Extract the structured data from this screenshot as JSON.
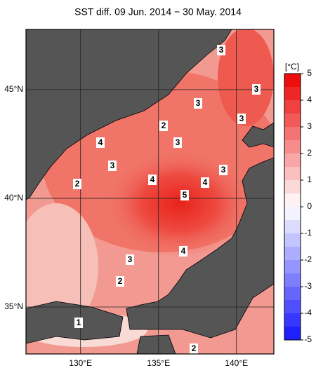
{
  "title": "SST diff. 09 Jun. 2014 − 30 May. 2014",
  "map": {
    "lonlim": [
      126.5,
      142.4
    ],
    "latlim": [
      32.84,
      47.77
    ],
    "lon_ticks": [
      {
        "value": 130,
        "label": "130°E"
      },
      {
        "value": 135,
        "label": "135°E"
      },
      {
        "value": 140,
        "label": "140°E"
      }
    ],
    "lat_ticks": [
      {
        "value": 45,
        "label": "45°N"
      },
      {
        "value": 40,
        "label": "40°N"
      },
      {
        "value": 35,
        "label": "35°N"
      }
    ],
    "contour_labels": [
      3,
      3,
      3,
      2,
      3,
      4,
      3,
      3,
      3,
      2,
      4,
      4,
      5,
      4,
      3,
      2,
      1,
      2
    ]
  },
  "colorbar": {
    "label": "[°C]",
    "lim": [
      -5,
      5
    ],
    "ticks": [
      5,
      4,
      3,
      2,
      1,
      0,
      -1,
      -2,
      -3,
      -4,
      -5
    ]
  }
}
